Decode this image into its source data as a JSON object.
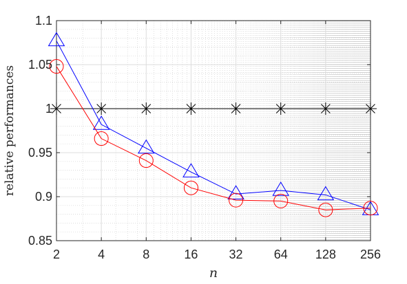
{
  "chart_data": {
    "type": "line",
    "title": "",
    "xlabel": "n",
    "ylabel": "relative performances",
    "x": [
      2,
      4,
      8,
      16,
      32,
      64,
      128,
      256
    ],
    "x_tick_labels": [
      "2",
      "4",
      "8",
      "16",
      "32",
      "64",
      "128",
      "256"
    ],
    "x_scale": "log2",
    "xlim": [
      2,
      256
    ],
    "ylim": [
      0.85,
      1.1
    ],
    "y_ticks": [
      0.85,
      0.9,
      0.95,
      1,
      1.05,
      1.1
    ],
    "y_tick_labels": [
      "0.85",
      "0.9",
      "0.95",
      "1",
      "1.05",
      "1.1"
    ],
    "grid": true,
    "minor_grid": true,
    "legend": "none",
    "series": [
      {
        "color": "#000000",
        "marker": "asterisk",
        "values": [
          1,
          1,
          1,
          1,
          1,
          1,
          1,
          1
        ]
      },
      {
        "color": "#0000ff",
        "marker": "triangle",
        "values": [
          1.077,
          0.982,
          0.955,
          0.928,
          0.903,
          0.907,
          0.902,
          0.885
        ]
      },
      {
        "color": "#ff0000",
        "marker": "circle",
        "values": [
          1.048,
          0.966,
          0.941,
          0.91,
          0.896,
          0.895,
          0.885,
          0.887
        ]
      }
    ]
  }
}
